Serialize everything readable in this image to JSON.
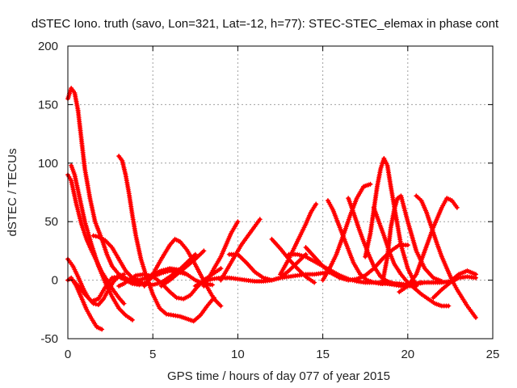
{
  "chart_data": {
    "type": "scatter",
    "title": "dSTEC Iono. truth (savo, Lon=321, Lat=-12, h=77): STEC-STEC_elemax in phase cont",
    "xlabel": "GPS time / hours of day 077 of year 2015",
    "ylabel": "dSTEC  / TECUs",
    "xlim": [
      0,
      25
    ],
    "ylim": [
      -50,
      200
    ],
    "xticks": [
      "0",
      "5",
      "10",
      "15",
      "20",
      "25"
    ],
    "yticks": [
      "-50",
      "0",
      "50",
      "100",
      "150",
      "200"
    ],
    "grid": true,
    "marker": "+",
    "color": "#ff0000",
    "series": [
      {
        "x": [
          0.0,
          0.2,
          0.4,
          0.6,
          0.8,
          1.0,
          1.3,
          1.6,
          2.0,
          2.3,
          2.6,
          3.0,
          3.5,
          4.0,
          4.5,
          5.0,
          5.5,
          6.0,
          6.5,
          7.0,
          7.5
        ],
        "y": [
          155,
          164,
          160,
          145,
          120,
          95,
          70,
          50,
          35,
          22,
          12,
          5,
          1,
          -1,
          -3,
          -4,
          -2,
          3,
          8,
          15,
          22
        ]
      },
      {
        "x": [
          0.0,
          0.2,
          0.5,
          0.8,
          1.1,
          1.4,
          1.7,
          2.0,
          2.3,
          2.6,
          3.0,
          3.3
        ],
        "y": [
          90,
          85,
          65,
          48,
          35,
          25,
          16,
          7,
          0,
          -7,
          -15,
          -20
        ]
      },
      {
        "x": [
          0.2,
          0.4,
          0.7,
          1.0,
          1.4,
          1.8,
          2.2,
          2.6,
          3.0,
          3.4,
          3.8
        ],
        "y": [
          98,
          90,
          70,
          50,
          30,
          12,
          -2,
          -14,
          -24,
          -30,
          -34
        ]
      },
      {
        "x": [
          0.0,
          0.2,
          0.5,
          0.8,
          1.1,
          1.4,
          1.7,
          2.0
        ],
        "y": [
          0,
          2,
          -5,
          -15,
          -25,
          -33,
          -40,
          -42
        ]
      },
      {
        "x": [
          0.0,
          0.3,
          0.6,
          0.9,
          1.2,
          1.5,
          1.8,
          2.1,
          2.4,
          2.7,
          3.0,
          3.3
        ],
        "y": [
          18,
          12,
          3,
          -7,
          -15,
          -20,
          -21,
          -16,
          -8,
          -1,
          3,
          5
        ]
      },
      {
        "x": [
          0.3,
          0.6,
          1.0,
          1.4,
          1.8,
          2.2,
          2.6,
          3.0,
          3.4,
          3.8,
          4.2,
          4.6,
          5.0,
          5.5,
          6.0,
          6.5,
          7.0
        ],
        "y": [
          0,
          -5,
          -12,
          -18,
          -16,
          -6,
          2,
          3,
          0,
          -3,
          -4,
          -2,
          3,
          6,
          8,
          7,
          5
        ]
      },
      {
        "x": [
          1.5,
          1.8,
          2.2,
          2.6,
          3.0,
          3.4,
          3.8,
          4.2,
          4.6,
          5.0,
          5.5,
          6.0,
          6.5,
          7.0,
          7.5,
          8.0,
          8.5
        ],
        "y": [
          38,
          37,
          34,
          28,
          18,
          8,
          2,
          0,
          2,
          5,
          8,
          10,
          9,
          5,
          0,
          -3,
          -4
        ]
      },
      {
        "x": [
          3.0,
          3.2,
          3.4,
          3.6,
          3.8,
          4.0,
          4.3,
          4.6,
          5.0,
          5.4,
          5.8,
          6.2,
          6.6,
          7.0,
          7.4,
          7.8,
          8.2,
          8.6
        ],
        "y": [
          106,
          102,
          90,
          74,
          55,
          38,
          18,
          4,
          -12,
          -24,
          -29,
          -30,
          -31,
          -33,
          -35,
          -30,
          -22,
          -15
        ]
      },
      {
        "x": [
          3.0,
          3.3,
          3.6,
          4.0,
          4.5,
          5.0,
          5.3,
          5.6,
          6.0,
          6.4,
          6.8,
          7.2,
          7.6,
          8.0,
          8.5,
          9.0
        ],
        "y": [
          -5,
          -3,
          0,
          4,
          5,
          3,
          0,
          -4,
          -10,
          -15,
          -16,
          -13,
          -6,
          0,
          5,
          10
        ]
      },
      {
        "x": [
          4.5,
          5.0,
          5.5,
          6.0,
          6.3,
          6.6,
          7.0,
          7.4,
          7.8,
          8.2,
          8.6,
          9.0
        ],
        "y": [
          -5,
          5,
          18,
          30,
          35,
          33,
          26,
          16,
          5,
          -6,
          -16,
          -22
        ]
      },
      {
        "x": [
          5.5,
          6.0,
          6.5,
          7.0,
          7.5,
          8.0
        ],
        "y": [
          -5,
          0,
          6,
          12,
          18,
          25
        ]
      },
      {
        "x": [
          7.5,
          8.0,
          8.5,
          9.0,
          9.5,
          10.0,
          10.5,
          11.0,
          11.5,
          12.0,
          12.5,
          13.0,
          13.5,
          14.0,
          14.5,
          15.0,
          15.5
        ],
        "y": [
          -5,
          -1,
          1,
          2,
          2,
          1,
          0,
          -1,
          -1,
          0,
          2,
          3,
          4,
          5,
          5,
          6,
          7
        ]
      },
      {
        "x": [
          8.0,
          8.3,
          8.6,
          9.0,
          9.3,
          9.6,
          10.0
        ],
        "y": [
          -5,
          2,
          10,
          20,
          30,
          40,
          50
        ]
      },
      {
        "x": [
          9.0,
          9.4,
          9.8,
          10.2,
          10.6,
          11.0,
          11.3
        ],
        "y": [
          0,
          10,
          20,
          30,
          38,
          46,
          52
        ]
      },
      {
        "x": [
          9.5,
          10.0,
          10.5,
          11.0,
          11.5,
          12.0,
          12.5,
          13.0,
          13.5,
          14.0
        ],
        "y": [
          22,
          22,
          15,
          7,
          2,
          0,
          2,
          8,
          15,
          22
        ]
      },
      {
        "x": [
          12.0,
          12.5,
          13.0,
          13.5,
          14.0,
          14.5
        ],
        "y": [
          35,
          27,
          18,
          10,
          3,
          -2
        ]
      },
      {
        "x": [
          12.5,
          13.0,
          13.5,
          14.0,
          14.3,
          14.6
        ],
        "y": [
          5,
          18,
          33,
          48,
          58,
          65
        ]
      },
      {
        "x": [
          13.0,
          13.5,
          14.0,
          14.5,
          15.0,
          15.5,
          16.0,
          16.5,
          17.0,
          17.5,
          18.0,
          18.5,
          19.0,
          19.5,
          20.0
        ],
        "y": [
          22,
          22,
          20,
          16,
          12,
          8,
          4,
          1,
          -1,
          -2,
          -2,
          -2,
          -3,
          -3,
          -4
        ]
      },
      {
        "x": [
          14.0,
          14.5,
          15.0,
          15.5,
          16.0,
          16.5,
          17.0,
          17.5,
          18.0,
          18.5,
          19.0,
          19.5,
          20.0
        ],
        "y": [
          28,
          20,
          12,
          6,
          2,
          0,
          1,
          4,
          10,
          18,
          25,
          30,
          30
        ]
      },
      {
        "x": [
          15.0,
          15.4,
          15.8,
          16.2,
          16.6,
          17.0,
          17.4,
          17.8
        ],
        "y": [
          0,
          10,
          22,
          38,
          55,
          70,
          80,
          82
        ]
      },
      {
        "x": [
          15.3,
          15.6,
          16.0,
          16.4,
          16.8,
          17.2,
          17.6,
          18.0,
          18.4,
          18.8,
          19.2,
          19.6,
          20.0,
          20.5
        ],
        "y": [
          68,
          60,
          45,
          30,
          15,
          5,
          0,
          -2,
          -3,
          -3,
          -4,
          -5,
          -5,
          -5
        ]
      },
      {
        "x": [
          16.5,
          16.8,
          17.1,
          17.4,
          17.7,
          18.0,
          18.4,
          18.8,
          19.2,
          19.6,
          20.0,
          20.4,
          20.8
        ],
        "y": [
          70,
          58,
          45,
          33,
          22,
          12,
          3,
          -1,
          -3,
          -4,
          -4,
          -3,
          -2
        ]
      },
      {
        "x": [
          17.5,
          17.8,
          18.0,
          18.2,
          18.4,
          18.6,
          18.8,
          19.0,
          19.3,
          19.6,
          20.0,
          20.5
        ],
        "y": [
          20,
          40,
          60,
          80,
          95,
          104,
          98,
          80,
          55,
          30,
          10,
          -5
        ]
      },
      {
        "x": [
          18.0,
          18.3,
          18.6,
          18.9,
          19.2,
          19.6,
          20.0,
          20.4,
          20.8,
          21.2,
          21.6,
          22.0,
          22.4
        ],
        "y": [
          62,
          50,
          38,
          25,
          14,
          5,
          -2,
          -7,
          -12,
          -16,
          -20,
          -22,
          -22
        ]
      },
      {
        "x": [
          18.5,
          18.8,
          19.0,
          19.2,
          19.4,
          19.6,
          20.0,
          20.5,
          21.0,
          21.5,
          22.0
        ],
        "y": [
          -3,
          20,
          45,
          60,
          70,
          72,
          50,
          25,
          10,
          2,
          -1
        ]
      },
      {
        "x": [
          20.5,
          20.8,
          21.1,
          21.4,
          21.7,
          22.0,
          22.3,
          22.6,
          22.9,
          23.2,
          23.5,
          23.8,
          24.0
        ],
        "y": [
          72,
          68,
          58,
          45,
          32,
          20,
          10,
          0,
          -8,
          -15,
          -22,
          -28,
          -32
        ]
      },
      {
        "x": [
          19.5,
          20.0,
          20.5,
          21.0,
          21.5,
          22.0,
          22.3,
          22.6,
          22.9
        ],
        "y": [
          -10,
          -5,
          5,
          25,
          45,
          62,
          70,
          68,
          62
        ]
      },
      {
        "x": [
          20.5,
          21.0,
          21.5,
          22.0,
          22.5,
          23.0,
          23.5,
          24.0
        ],
        "y": [
          -3,
          -2,
          -2,
          -2,
          -1,
          5,
          8,
          5
        ]
      },
      {
        "x": [
          21.5,
          22.0,
          22.5,
          23.0,
          23.5,
          24.0
        ],
        "y": [
          -15,
          -8,
          -2,
          2,
          3,
          2
        ]
      }
    ]
  }
}
